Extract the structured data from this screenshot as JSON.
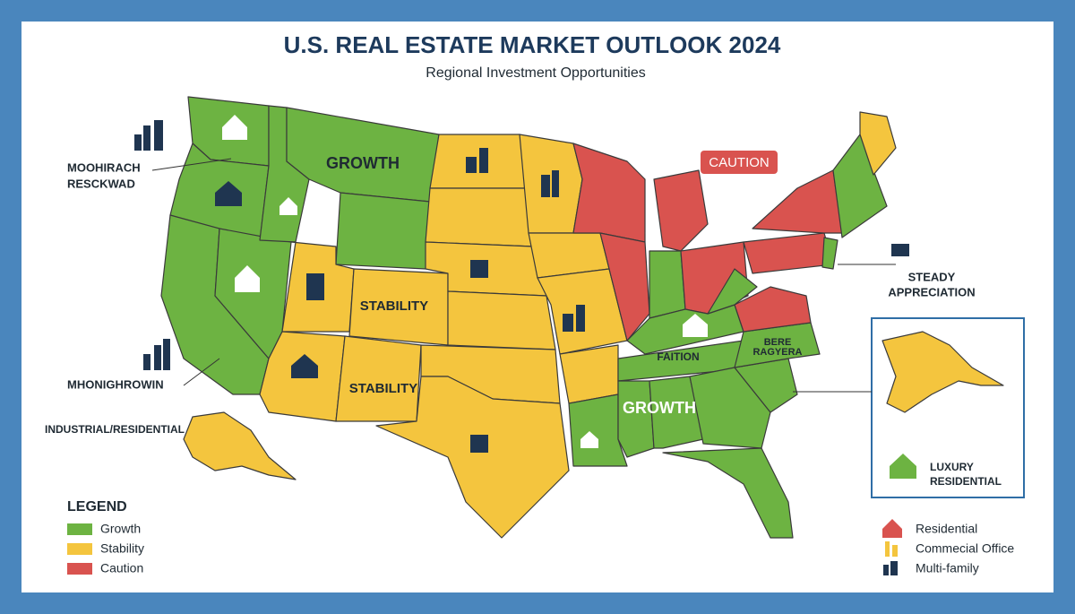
{
  "header": {
    "title": "U.S. REAL ESTATE MARKET OUTLOOK 2024",
    "subtitle": "Regional Investment Opportunities"
  },
  "map_labels": {
    "growth_west": "GROWTH",
    "stability_1": "STABILITY",
    "stability_2": "STABILITY",
    "growth_south": "GROWTH",
    "caution": "CAUTION",
    "faition": "FAITION",
    "bere": [
      "BERE",
      "RAGYERA"
    ]
  },
  "callouts": {
    "northwest": [
      "MOOHIRACH",
      "RESCKWAD"
    ],
    "west": "MHONIGHROWIN",
    "alaska": "INDUSTRIAL/RESIDENTIAL",
    "east": [
      "STEADY",
      "APPRECIATION"
    ],
    "inset": [
      "LUXURY",
      "RESIDENTIAL"
    ]
  },
  "legend": {
    "title": "LEGEND",
    "items": [
      "Growth",
      "Stability",
      "Caution"
    ]
  },
  "icon_legend": [
    "Residential",
    "Commecial Office",
    "Multi-family"
  ]
}
